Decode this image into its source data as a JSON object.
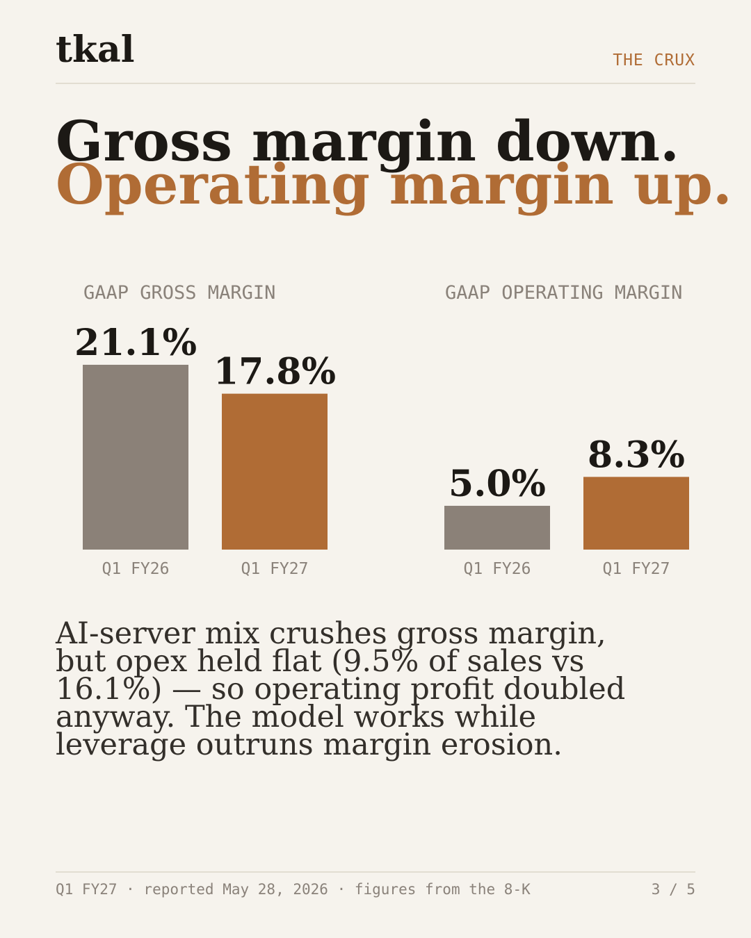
{
  "brand": "tkal",
  "section_tag": "THE CRUX",
  "headline": {
    "line1": "Gross margin down.",
    "line2": "Operating margin up."
  },
  "colors": {
    "background": "#f6f3ed",
    "text": "#1c1915",
    "accent": "#b06c35",
    "prior_bar": "#8b8178",
    "muted": "#8a827a"
  },
  "chart_data": [
    {
      "type": "bar",
      "title": "GAAP GROSS MARGIN",
      "categories": [
        "Q1 FY26",
        "Q1 FY27"
      ],
      "values": [
        21.1,
        17.8
      ],
      "labels": [
        "21.1%",
        "17.8%"
      ],
      "bar_colors": [
        "#8b8178",
        "#b06c35"
      ],
      "unit": "%",
      "xlabel": "",
      "ylabel": "",
      "ylim": [
        0,
        25
      ],
      "grid": false
    },
    {
      "type": "bar",
      "title": "GAAP OPERATING MARGIN",
      "categories": [
        "Q1 FY26",
        "Q1 FY27"
      ],
      "values": [
        5.0,
        8.3
      ],
      "labels": [
        "5.0%",
        "8.3%"
      ],
      "bar_colors": [
        "#8b8178",
        "#b06c35"
      ],
      "unit": "%",
      "xlabel": "",
      "ylabel": "",
      "ylim": [
        0,
        10
      ],
      "grid": false
    }
  ],
  "body_lines": [
    "AI-server mix crushes gross margin,",
    "but opex held flat (9.5% of sales vs",
    "16.1%) — so operating profit doubled",
    "anyway. The model works while",
    "leverage outruns margin erosion."
  ],
  "footer": {
    "note": "Q1 FY27 · reported May 28, 2026 · figures from the 8-K",
    "page": "3 / 5"
  }
}
